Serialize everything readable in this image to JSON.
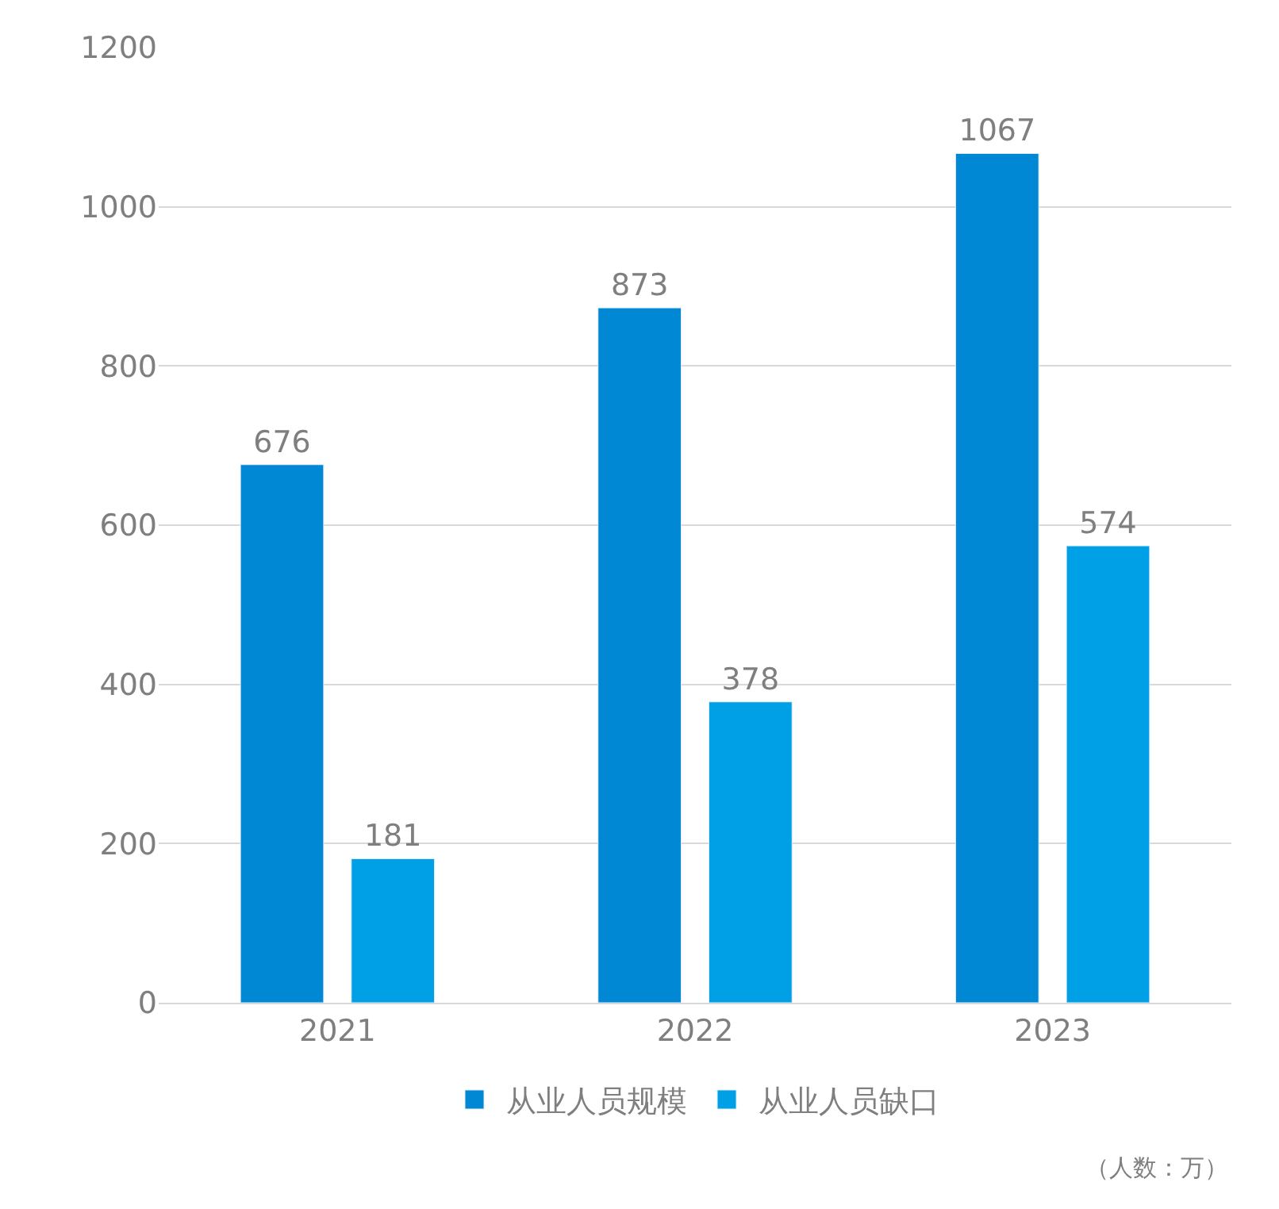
{
  "chart_data": {
    "type": "bar",
    "categories": [
      "2021",
      "2022",
      "2023"
    ],
    "series": [
      {
        "name": "从业人员规模",
        "color": "#0088d4",
        "values": [
          676,
          873,
          1067
        ]
      },
      {
        "name": "从业人员缺口",
        "color": "#00a0e6",
        "values": [
          181,
          378,
          574
        ]
      }
    ],
    "ylim": [
      0,
      1200
    ],
    "yticks": [
      0,
      200,
      400,
      600,
      800,
      1000,
      1200
    ],
    "grid": "y",
    "legend": "bottom",
    "data_labels": true,
    "annotations": [
      "（人数：万）"
    ]
  }
}
